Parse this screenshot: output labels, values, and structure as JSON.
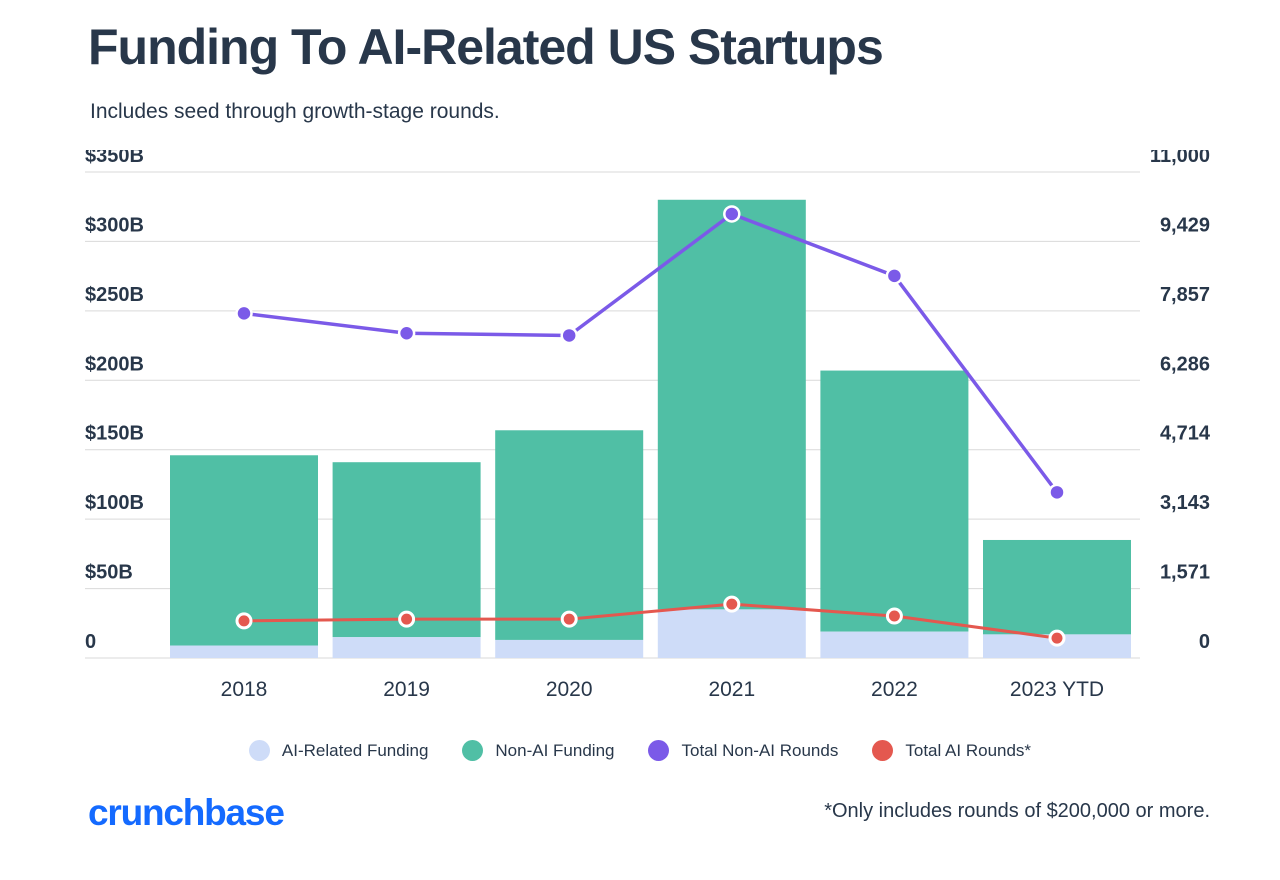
{
  "header": {
    "title": "Funding To AI-Related US Startups",
    "subtitle": "Includes seed through growth-stage rounds."
  },
  "footer": {
    "logo_text": "crunchbase",
    "footnote": "*Only includes rounds of $200,000 or more."
  },
  "colors": {
    "title": "#28374A",
    "axis_label": "#28374A",
    "gridline": "#D9D9D9",
    "ai_funding": "#CEDCF8",
    "non_ai_funding": "#50BFA5",
    "non_ai_rounds": "#7B5AE8",
    "ai_rounds": "#E4584F",
    "marker_ring": "#FFFFFF",
    "logo_blue": "#146AFF"
  },
  "chart_data": {
    "type": "combo-stacked-bar-line",
    "categories": [
      "2018",
      "2019",
      "2020",
      "2021",
      "2022",
      "2023 YTD"
    ],
    "bar_series": [
      {
        "name": "AI-Related Funding",
        "stack": "funding",
        "axis": "left",
        "color_key": "ai_funding",
        "values_billions": [
          9,
          15,
          13,
          35,
          19,
          17
        ]
      },
      {
        "name": "Non-AI Funding",
        "stack": "funding",
        "axis": "left",
        "color_key": "non_ai_funding",
        "values_billions": [
          137,
          126,
          151,
          295,
          188,
          68
        ]
      }
    ],
    "line_series": [
      {
        "name": "Total Non-AI Rounds",
        "axis": "right",
        "color_key": "non_ai_rounds",
        "values": [
          7800,
          7350,
          7300,
          10050,
          8650,
          3750
        ]
      },
      {
        "name": "Total AI Rounds*",
        "axis": "right",
        "color_key": "ai_rounds",
        "values": [
          840,
          880,
          880,
          1220,
          950,
          450
        ]
      }
    ],
    "left_axis": {
      "min": 0,
      "max": 350,
      "ticks": [
        "$350B",
        "$300B",
        "$250B",
        "$200B",
        "$150B",
        "$100B",
        "$50B",
        "0"
      ]
    },
    "right_axis": {
      "min": 0,
      "max": 11000,
      "ticks": [
        "11,000",
        "9,429",
        "7,857",
        "6,286",
        "4,714",
        "3,143",
        "1,571",
        "0"
      ]
    },
    "grid": true,
    "legend_position": "bottom",
    "legend": [
      {
        "label": "AI-Related Funding",
        "color_key": "ai_funding"
      },
      {
        "label": "Non-AI Funding",
        "color_key": "non_ai_funding"
      },
      {
        "label": "Total Non-AI Rounds",
        "color_key": "non_ai_rounds"
      },
      {
        "label": "Total AI Rounds*",
        "color_key": "ai_rounds"
      }
    ]
  }
}
